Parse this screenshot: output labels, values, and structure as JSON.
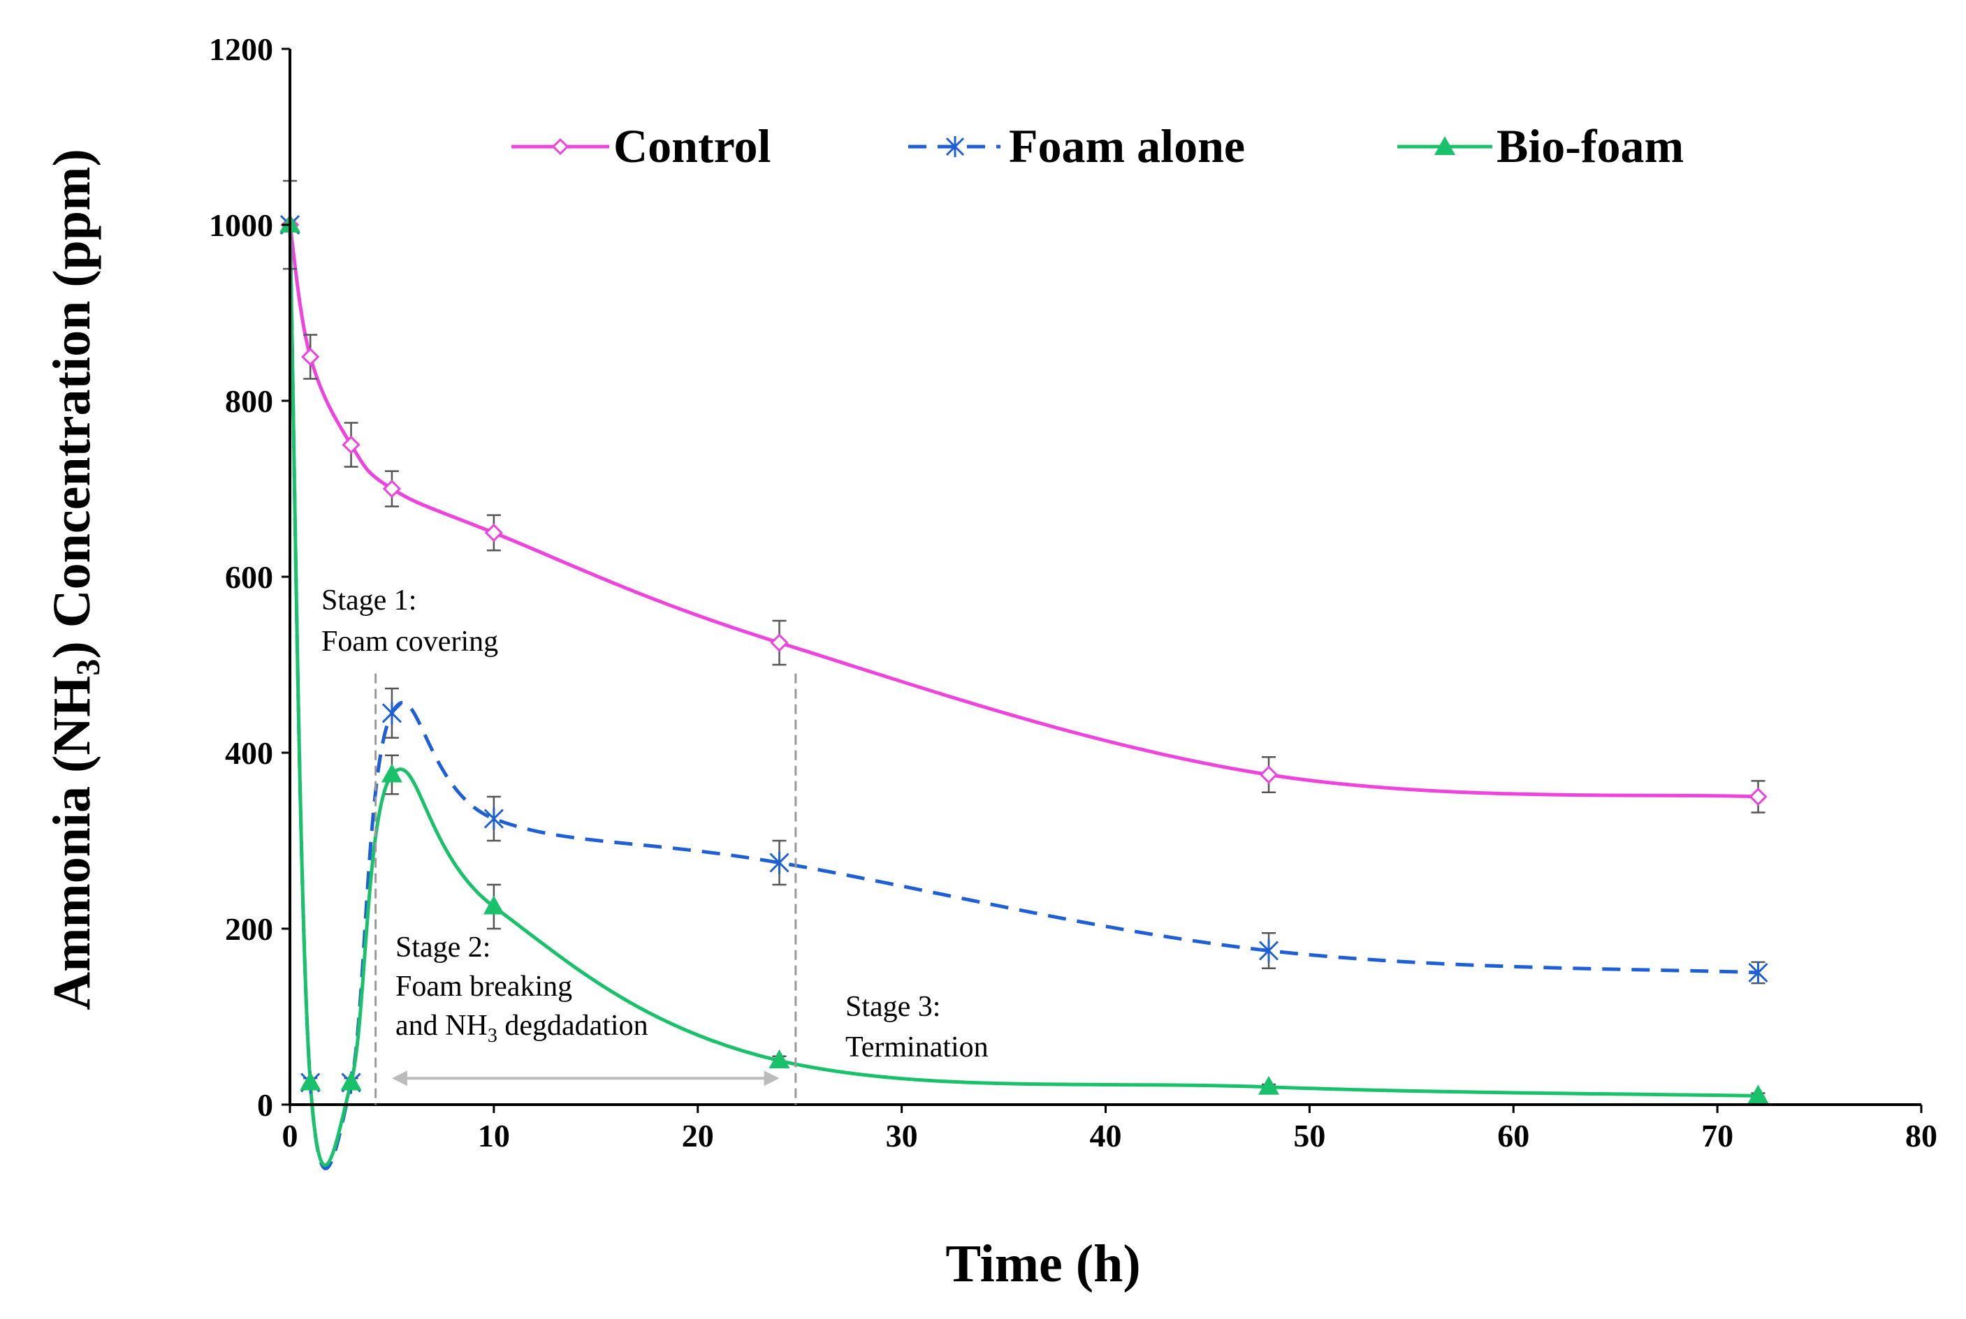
{
  "chart_data": {
    "type": "line",
    "title": "",
    "xlabel": "Time (h)",
    "ylabel": "Ammonia (NH3) Concentration (ppm)",
    "ylabel_parts": {
      "pre": "Ammonia (NH",
      "sub": "3",
      "post": ") Concentration (ppm)"
    },
    "xlim": [
      0,
      80
    ],
    "ylim": [
      0,
      1200
    ],
    "xticks": [
      0,
      10,
      20,
      30,
      40,
      50,
      60,
      70,
      80
    ],
    "yticks": [
      0,
      200,
      400,
      600,
      800,
      1000,
      1200
    ],
    "grid": false,
    "legend_position": "top",
    "series": [
      {
        "name": "Control",
        "color": "#ee44dd",
        "marker": "diamond",
        "line": "solid",
        "x": [
          0,
          1,
          3,
          5,
          10,
          24,
          48,
          72
        ],
        "values": [
          1000,
          850,
          750,
          700,
          650,
          525,
          375,
          350
        ],
        "errors": [
          50,
          25,
          25,
          20,
          20,
          25,
          20,
          18
        ]
      },
      {
        "name": "Foam alone",
        "color": "#1e5fd6",
        "marker": "asterisk",
        "line": "dashed",
        "x": [
          0,
          1,
          3,
          5,
          10,
          24,
          48,
          72
        ],
        "values": [
          1000,
          25,
          25,
          445,
          325,
          275,
          175,
          150
        ],
        "errors": [
          0,
          5,
          5,
          28,
          25,
          25,
          20,
          12
        ]
      },
      {
        "name": "Bio-foam",
        "color": "#19c26a",
        "marker": "triangle",
        "line": "solid",
        "x": [
          0,
          1,
          3,
          5,
          10,
          24,
          48,
          72
        ],
        "values": [
          1000,
          25,
          25,
          375,
          225,
          50,
          20,
          10
        ],
        "errors": [
          0,
          5,
          5,
          22,
          25,
          5,
          3,
          3
        ]
      }
    ],
    "stage_lines_x": [
      4.2,
      24.8
    ],
    "stage_arrow": {
      "x_from": 5,
      "x_to": 24,
      "y": 30
    },
    "annotations": {
      "stage1_line1": "Stage 1:",
      "stage1_line2": "Foam covering",
      "stage2_line1": "Stage 2:",
      "stage2_line2": "Foam breaking",
      "stage2_line3_pre": "and NH",
      "stage2_line3_sub": "3",
      "stage2_line3_post": " degdadation",
      "stage3_line1": "Stage 3:",
      "stage3_line2": "Termination"
    }
  }
}
